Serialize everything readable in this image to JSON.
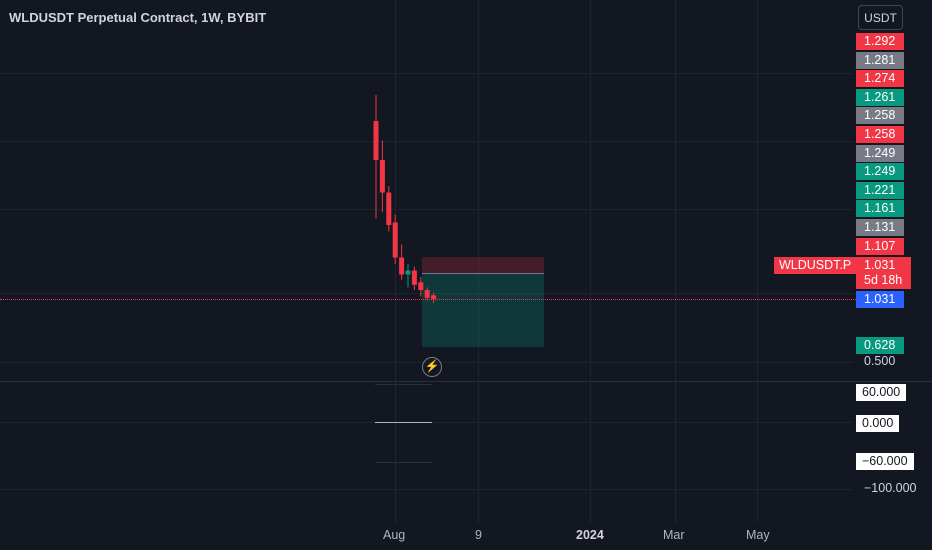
{
  "header": {
    "title": "WLDUSDT Perpetual Contract, 1W, BYBIT",
    "currency": "USDT"
  },
  "colors": {
    "up": "#089981",
    "down": "#f23645",
    "neutral": "#787b86",
    "current": "#2962ff"
  },
  "price_scale": [
    {
      "value": "1.292",
      "color": "#f23645"
    },
    {
      "value": "1.281",
      "color": "#787b86"
    },
    {
      "value": "1.274",
      "color": "#f23645"
    },
    {
      "value": "1.261",
      "color": "#089981"
    },
    {
      "value": "1.258",
      "color": "#787b86"
    },
    {
      "value": "1.258",
      "color": "#f23645"
    },
    {
      "value": "1.249",
      "color": "#787b86"
    },
    {
      "value": "1.249",
      "color": "#089981"
    },
    {
      "value": "1.221",
      "color": "#089981"
    },
    {
      "value": "1.161",
      "color": "#089981"
    },
    {
      "value": "1.131",
      "color": "#787b86"
    },
    {
      "value": "1.107",
      "color": "#f23645"
    }
  ],
  "last_price": {
    "symbol": "WLDUSDT.P",
    "price": "1.031",
    "countdown": "5d 18h",
    "current": "1.031"
  },
  "target_price": "0.628",
  "axis_price_500": "0.500",
  "oscillator": {
    "upper": "60.000",
    "zero": "0.000",
    "lower": "−60.000",
    "min": "−100.000"
  },
  "time_axis": [
    "Aug",
    "9",
    "2024",
    "Mar",
    "May"
  ],
  "candles": [
    {
      "o": 2.4,
      "h": 2.6,
      "l": 1.65,
      "c": 2.1
    },
    {
      "o": 2.1,
      "h": 2.25,
      "l": 1.7,
      "c": 1.85
    },
    {
      "o": 1.85,
      "h": 1.9,
      "l": 1.55,
      "c": 1.6
    },
    {
      "o": 1.62,
      "h": 1.68,
      "l": 1.3,
      "c": 1.35
    },
    {
      "o": 1.35,
      "h": 1.45,
      "l": 1.18,
      "c": 1.22
    },
    {
      "o": 1.22,
      "h": 1.3,
      "l": 1.12,
      "c": 1.25
    },
    {
      "o": 1.25,
      "h": 1.28,
      "l": 1.1,
      "c": 1.14
    },
    {
      "o": 1.16,
      "h": 1.2,
      "l": 1.05,
      "c": 1.1
    },
    {
      "o": 1.1,
      "h": 1.12,
      "l": 1.02,
      "c": 1.04
    },
    {
      "o": 1.06,
      "h": 1.08,
      "l": 1.0,
      "c": 1.03
    }
  ]
}
